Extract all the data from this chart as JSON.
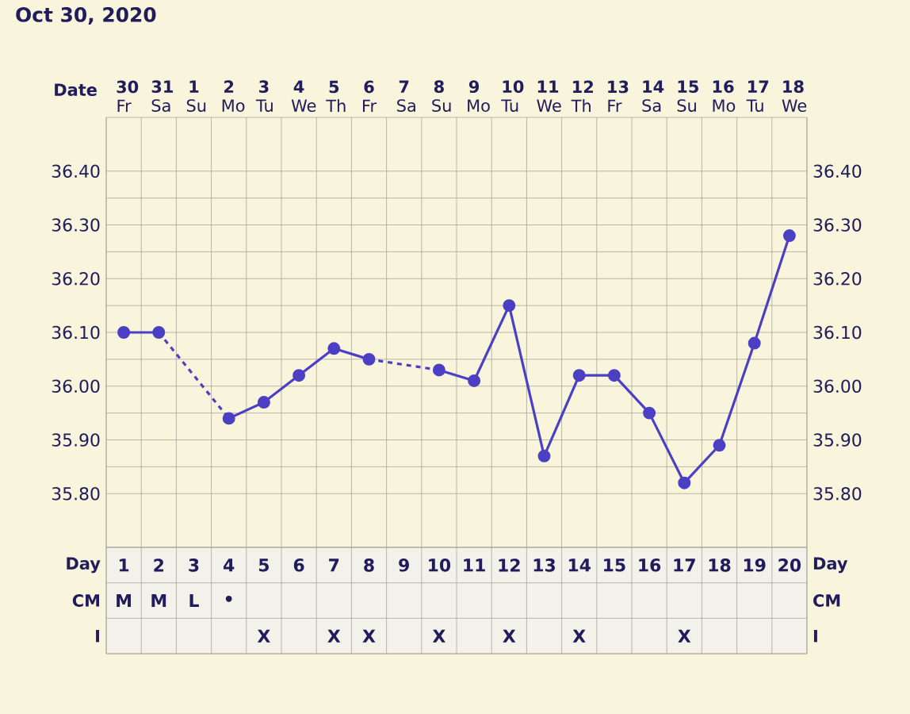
{
  "chart_data": [
    {
      "type": "line",
      "title": "Oct 30, 2020",
      "xlabel": "Date",
      "categories": [
        "**30** Fr",
        "**31** Sa",
        "**1** Su",
        "**2** Mo",
        "**3** Tu",
        "**4** We",
        "**5** Th",
        "**6** Fr",
        "**7** Sa",
        "**8** Su",
        "**9** Mo",
        "**10** Tu",
        "**11** We",
        "**12** Th",
        "**13** Fr",
        "**14** Sa",
        "**15** Su",
        "**16** Mo",
        "**17** Tu",
        "**18** We"
      ],
      "series": [
        {
          "color": "#4b3fc4",
          "values": [
            36.1,
            36.1,
            null,
            35.94,
            35.97,
            36.02,
            36.07,
            36.05,
            null,
            36.03,
            36.01,
            36.15,
            35.87,
            36.02,
            36.02,
            35.95,
            35.82,
            35.89,
            36.08,
            36.28
          ]
        }
      ],
      "ylim": [
        35.7,
        36.5
      ],
      "yticks": [
        {
          "value": 35.8,
          "label": "35.80"
        },
        {
          "value": 35.9,
          "label": "35.90"
        },
        {
          "value": 36.0,
          "label": "36.00"
        },
        {
          "value": 36.1,
          "label": "36.10"
        },
        {
          "value": 36.2,
          "label": "36.20"
        },
        {
          "value": 36.3,
          "label": "36.30"
        },
        {
          "value": 36.4,
          "label": "36.40"
        }
      ],
      "y2lim": [
        35.7,
        36.5
      ],
      "y2ticks": [
        {
          "value": 35.8,
          "label": "35.80"
        },
        {
          "value": 35.9,
          "label": "35.90"
        },
        {
          "value": 36.0,
          "label": "36.00"
        },
        {
          "value": 36.1,
          "label": "36.10"
        },
        {
          "value": 36.2,
          "label": "36.20"
        },
        {
          "value": 36.3,
          "label": "36.30"
        },
        {
          "value": 36.4,
          "label": "36.40"
        }
      ],
      "grid": true,
      "marker": "circle",
      "line_style": "solid"
    },
    {
      "type": "heatmap",
      "categories": [
        null,
        null,
        null,
        null,
        null,
        null,
        null,
        null,
        null,
        null,
        null,
        null,
        null,
        null,
        null,
        null,
        null,
        null,
        null,
        null
      ],
      "y_categories": [
        "Day",
        "CM",
        "I"
      ],
      "y2_categories": [
        "Day",
        "CM",
        "I"
      ],
      "cells": [
        [
          null,
          null,
          null,
          null,
          null,
          null,
          null,
          null,
          null,
          null,
          null,
          null,
          null,
          null,
          null,
          null,
          null,
          null,
          null,
          null
        ],
        [
          null,
          null,
          null,
          null,
          null,
          null,
          null,
          null,
          null,
          null,
          null,
          null,
          null,
          null,
          null,
          null,
          null,
          null,
          null,
          null
        ],
        [
          null,
          null,
          null,
          null,
          null,
          null,
          null,
          null,
          null,
          null,
          null,
          null,
          null,
          null,
          null,
          null,
          null,
          null,
          null,
          null
        ]
      ],
      "cell_labels": [
        [
          "1",
          "2",
          "3",
          "4",
          "5",
          "6",
          "7",
          "8",
          "9",
          "10",
          "11",
          "12",
          "13",
          "14",
          "15",
          "16",
          "17",
          "18",
          "19",
          "20"
        ],
        [
          "M",
          "M",
          "L",
          "•",
          null,
          null,
          null,
          null,
          null,
          null,
          null,
          null,
          null,
          null,
          null,
          null,
          null,
          null,
          null,
          null
        ],
        [
          null,
          null,
          null,
          null,
          "X",
          null,
          "X",
          "X",
          null,
          "X",
          null,
          "X",
          null,
          "X",
          null,
          null,
          "X",
          null,
          null,
          null
        ]
      ]
    }
  ]
}
